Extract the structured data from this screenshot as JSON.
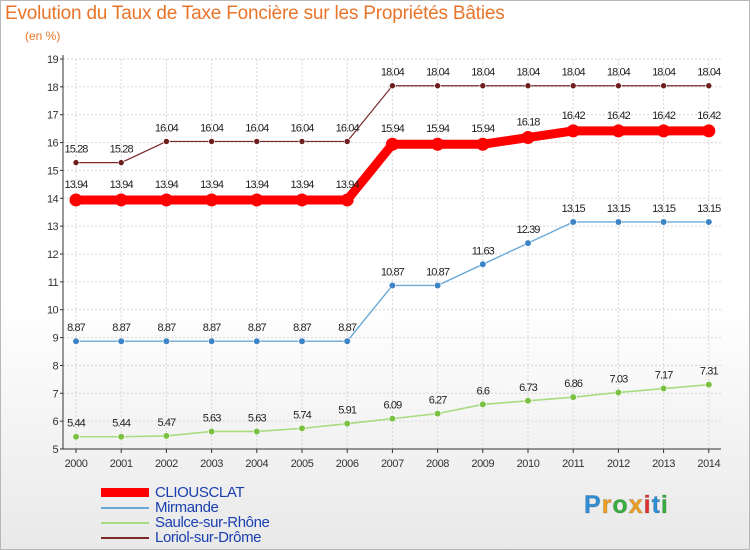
{
  "title": "Evolution du Taux de Taxe Foncière sur les Propriétés Bâties",
  "subtitle": "(en %)",
  "logo": {
    "letters": [
      "P",
      "r",
      "o",
      "x",
      "i",
      "t",
      "i"
    ],
    "colors": [
      "#2f8fd8",
      "#f0a020",
      "#38b040",
      "#f0a020",
      "#e03030",
      "#2f8fd8",
      "#38b040"
    ]
  },
  "chart_data": {
    "type": "line",
    "x": [
      "2000",
      "2001",
      "2002",
      "2003",
      "2004",
      "2005",
      "2006",
      "2007",
      "2008",
      "2009",
      "2010",
      "2011",
      "2012",
      "2013",
      "2014"
    ],
    "ylim": [
      5,
      19
    ],
    "yticks": [
      5,
      6,
      7,
      8,
      9,
      10,
      11,
      12,
      13,
      14,
      15,
      16,
      17,
      18,
      19
    ],
    "grid": true,
    "series": [
      {
        "name": "Loriol-sur-Drôme",
        "color": "#7a2a2a",
        "marker": "#6e1e1e",
        "width": 1.2,
        "radius": 3,
        "values": [
          15.28,
          15.28,
          16.04,
          16.04,
          16.04,
          16.04,
          16.04,
          18.04,
          18.04,
          18.04,
          18.04,
          18.04,
          18.04,
          18.04,
          18.04
        ],
        "labels": [
          "15.28",
          "15.28",
          "16.04",
          "16.04",
          "16.04",
          "16.04",
          "16.04",
          "18.04",
          "18.04",
          "18.04",
          "18.04",
          "18.04",
          "18.04",
          "18.04",
          "18.04"
        ]
      },
      {
        "name": "Mirmande",
        "color": "#6aaad8",
        "marker": "#3d84c6",
        "width": 1.4,
        "radius": 3.3,
        "values": [
          8.87,
          8.87,
          8.87,
          8.87,
          8.87,
          8.87,
          8.87,
          10.87,
          10.87,
          11.63,
          12.39,
          13.15,
          13.15,
          13.15,
          13.15
        ],
        "labels": [
          "8.87",
          "8.87",
          "8.87",
          "8.87",
          "8.87",
          "8.87",
          "8.87",
          "10.87",
          "10.87",
          "11.63",
          "12.39",
          "13.15",
          "13.15",
          "13.15",
          "13.15"
        ]
      },
      {
        "name": "Saulce-sur-Rhône",
        "color": "#a8dc80",
        "marker": "#7ac143",
        "width": 1.6,
        "radius": 3.3,
        "values": [
          5.44,
          5.44,
          5.47,
          5.63,
          5.63,
          5.74,
          5.91,
          6.09,
          6.27,
          6.6,
          6.73,
          6.86,
          7.03,
          7.17,
          7.31
        ],
        "labels": [
          "5.44",
          "5.44",
          "5.47",
          "5.63",
          "5.63",
          "5.74",
          "5.91",
          "6.09",
          "6.27",
          "6.6",
          "6.73",
          "6.86",
          "7.03",
          "7.17",
          "7.31"
        ]
      },
      {
        "name": "CLIOUSCLAT",
        "color": "#ff0000",
        "marker": "#ff0000",
        "width": 9,
        "radius": 6.5,
        "values": [
          13.94,
          13.94,
          13.94,
          13.94,
          13.94,
          13.94,
          13.94,
          15.94,
          15.94,
          15.94,
          16.18,
          16.42,
          16.42,
          16.42,
          16.42
        ],
        "labels": [
          "13.94",
          "13.94",
          "13.94",
          "13.94",
          "13.94",
          "13.94",
          "13.94",
          "15.94",
          "15.94",
          "15.94",
          "16.18",
          "16.42",
          "16.42",
          "16.42",
          "16.42"
        ]
      }
    ],
    "legend": [
      "CLIOUSCLAT",
      "Mirmande",
      "Saulce-sur-Rhône",
      "Loriol-sur-Drôme"
    ]
  }
}
